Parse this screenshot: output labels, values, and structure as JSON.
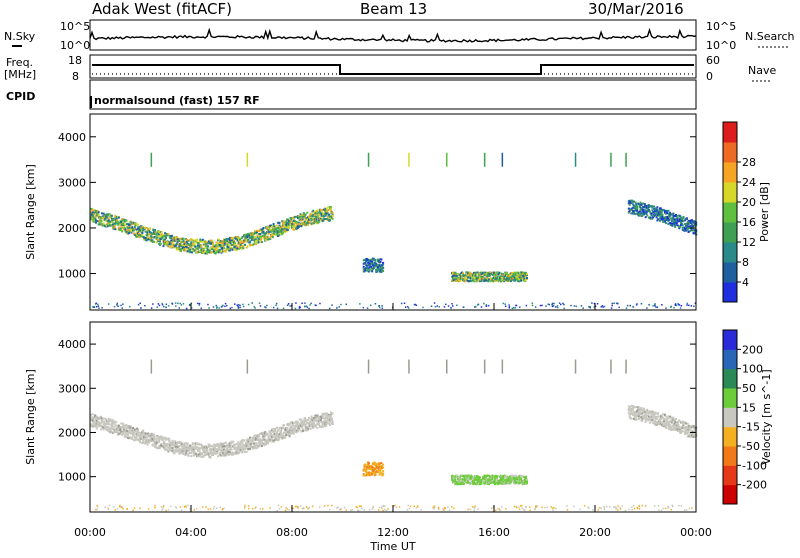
{
  "header": {
    "station": "Adak West (fitACF)",
    "beam": "Beam 13",
    "date": "30/Mar/2016"
  },
  "top_panels": {
    "nsky_label": "N.Sky",
    "nsearch_label": "N.Search",
    "left_scale_top": "10^5",
    "left_scale_bottom": "10^0",
    "right_scale_top": "10^5",
    "right_scale_bottom": "10^0",
    "freq_label_1": "Freq.",
    "freq_label_2": "[MHz]",
    "freq_ticks": [
      "18",
      "8"
    ],
    "nave_label": "Nave",
    "nave_ticks": [
      "60",
      "0"
    ],
    "cpid_label": "CPID",
    "cpid_text": "normalsound (fast) 157 RF"
  },
  "chart_data": [
    {
      "type": "heatmap",
      "name": "power-panel",
      "ylabel": "Slant Range [km]",
      "xlabel": "",
      "ylim": [
        200,
        4500
      ],
      "yticks": [
        1000,
        2000,
        3000,
        4000
      ],
      "xlim": [
        0,
        24
      ],
      "colorbar": {
        "label": "Power [dB]",
        "ticks": [
          "4",
          "8",
          "12",
          "16",
          "20",
          "24",
          "28"
        ],
        "colors": [
          "#1f2fe0",
          "#1f5fa0",
          "#2a8a8a",
          "#3f9f52",
          "#5fbf3f",
          "#d7d72a",
          "#f5a523",
          "#ee6a22",
          "#dd1c1c"
        ]
      },
      "echo_bands": [
        {
          "t0": 0.0,
          "t1": 9.6,
          "r_edges": [
            2300,
            2100,
            1850,
            1650,
            1600,
            1700,
            1950,
            2200,
            2350
          ],
          "width": 300,
          "peak": "strong"
        },
        {
          "t0": 10.8,
          "t1": 11.6,
          "r_center": 1200,
          "width": 300,
          "peak": "moderate"
        },
        {
          "t0": 14.3,
          "t1": 17.3,
          "r_center": 950,
          "width": 200,
          "peak": "strong"
        },
        {
          "t0": 21.3,
          "t1": 24.0,
          "r_edges": [
            2500,
            2300,
            2000
          ],
          "width": 300,
          "peak": "moderate"
        }
      ]
    },
    {
      "type": "heatmap",
      "name": "velocity-panel",
      "ylabel": "Slant Range [km]",
      "xlabel": "Time UT",
      "ylim": [
        200,
        4500
      ],
      "yticks": [
        1000,
        2000,
        3000,
        4000
      ],
      "xlim": [
        0,
        24
      ],
      "xticks": [
        "00:00",
        "04:00",
        "08:00",
        "12:00",
        "16:00",
        "20:00",
        "00:00"
      ],
      "colorbar": {
        "label": "Velocity [m s^-1]",
        "ticks": [
          "200",
          "100",
          "50",
          "15",
          "-15",
          "-50",
          "-100",
          "-200"
        ],
        "colors": [
          "#2a2ad8",
          "#2a66b8",
          "#2a8a55",
          "#6ccc3a",
          "#c8c8c0",
          "#f5b022",
          "#f07a18",
          "#e53818",
          "#cc0000"
        ]
      },
      "echo_bands": [
        {
          "t0": 0.0,
          "t1": 9.6,
          "r_edges": [
            2300,
            2100,
            1850,
            1650,
            1600,
            1700,
            1950,
            2200,
            2350
          ],
          "width": 300,
          "color": "ground"
        },
        {
          "t0": 10.8,
          "t1": 11.6,
          "r_center": 1200,
          "width": 300,
          "color": "away"
        },
        {
          "t0": 14.3,
          "t1": 17.3,
          "r_center": 950,
          "width": 200,
          "color": "toward"
        },
        {
          "t0": 21.3,
          "t1": 24.0,
          "r_edges": [
            2500,
            2300,
            2000
          ],
          "width": 300,
          "color": "ground"
        }
      ]
    }
  ]
}
